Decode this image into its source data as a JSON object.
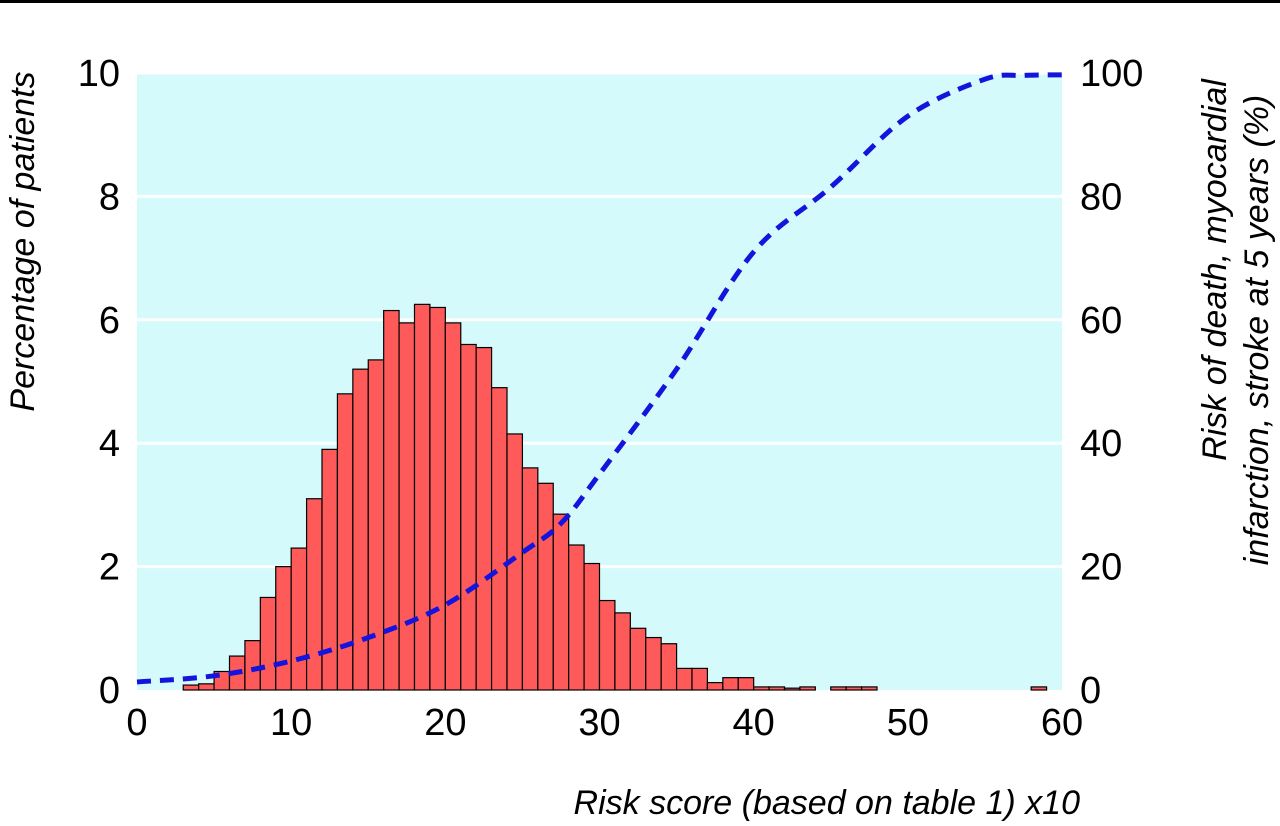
{
  "chart_data": {
    "type": "bar",
    "x": [
      3.5,
      4.5,
      5.5,
      6.5,
      7.5,
      8.5,
      9.5,
      10.5,
      11.5,
      12.5,
      13.5,
      14.5,
      15.5,
      16.5,
      17.5,
      18.5,
      19.5,
      20.5,
      21.5,
      22.5,
      23.5,
      24.5,
      25.5,
      26.5,
      27.5,
      28.5,
      29.5,
      30.5,
      31.5,
      32.5,
      33.5,
      34.5,
      35.5,
      36.5,
      37.5,
      38.5,
      39.5,
      40.5,
      41.5,
      42.5,
      43.5,
      44.5,
      45.5,
      46.5,
      47.5,
      48.5,
      49.5,
      50.5,
      51.5,
      52.5,
      53.5,
      54.5,
      55.5,
      56.5,
      57.5,
      58.5
    ],
    "values": [
      0.08,
      0.1,
      0.3,
      0.55,
      0.8,
      1.5,
      2.0,
      2.3,
      3.1,
      3.9,
      4.8,
      5.2,
      5.35,
      6.15,
      5.95,
      6.25,
      6.2,
      5.95,
      5.6,
      5.55,
      4.9,
      4.15,
      3.6,
      3.35,
      2.85,
      2.35,
      2.05,
      1.45,
      1.25,
      1.0,
      0.85,
      0.75,
      0.35,
      0.35,
      0.12,
      0.2,
      0.2,
      0.05,
      0.05,
      0.03,
      0.05,
      0,
      0.05,
      0.05,
      0.05,
      0,
      0,
      0,
      0,
      0,
      0,
      0,
      0,
      0,
      0,
      0.05
    ],
    "series": [
      {
        "name": "",
        "type": "bar",
        "axis": "left",
        "color": "#ff5a5a"
      },
      {
        "name": "",
        "type": "line",
        "style": "dashed",
        "axis": "right",
        "color": "#1414dc",
        "x": [
          0,
          5,
          10,
          15,
          20,
          25,
          27.5,
          30,
          35,
          40,
          45,
          50,
          55,
          57.5,
          60
        ],
        "y": [
          1.3,
          2.3,
          4.7,
          8.5,
          13.8,
          22.3,
          27,
          35,
          52,
          71,
          81.5,
          93,
          99,
          99.6,
          99.7
        ]
      }
    ],
    "xlabel": "Risk score (based on table 1) x10",
    "ylabel": "Percentage of patients",
    "y2label_lines": [
      "Risk of death, myocardial",
      "infarction, stroke at 5 years (%)"
    ],
    "xlim": [
      0,
      60
    ],
    "ylim": [
      0,
      10
    ],
    "y2lim": [
      0,
      100
    ],
    "xticks": [
      0,
      10,
      20,
      30,
      40,
      50,
      60
    ],
    "yticks": [
      0,
      2,
      4,
      6,
      8,
      10
    ],
    "y2ticks": [
      0,
      20,
      40,
      60,
      80,
      100
    ],
    "bin_width": 1,
    "grid": "horizontal",
    "plot_background": "#d4fafc",
    "grid_color": "#ffffff",
    "bar_edge_color": "#000000"
  }
}
